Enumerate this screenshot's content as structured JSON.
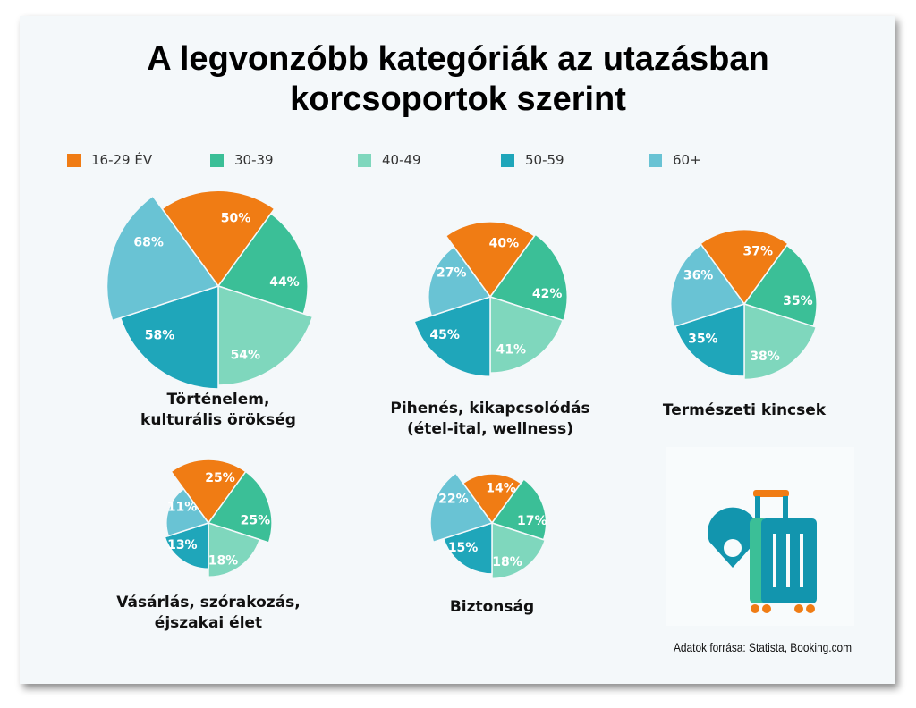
{
  "title_line1": "A legvonzóbb kategóriák az utazásban",
  "title_line2": "korcsoportok szerint",
  "colors": {
    "16-29 ÉV": "#f07c14",
    "30-39": "#3bbf97",
    "40-49": "#7fd7bd",
    "50-59": "#1fa6ba",
    "60+": "#69c3d4"
  },
  "chart_data": {
    "type": "pie",
    "subtype": "polar-area (equal angles, radius scaled by value)",
    "legend": [
      "16-29 ÉV",
      "30-39",
      "40-49",
      "50-59",
      "60+"
    ],
    "legend_position": "top",
    "charts": [
      {
        "label": "Történelem, kulturális örökség",
        "label_lines": [
          "Történelem,",
          "kulturális örökség"
        ],
        "values": [
          50,
          44,
          54,
          58,
          68
        ]
      },
      {
        "label": "Pihenés, kikapcsolódás (étel-ital, wellness)",
        "label_lines": [
          "Pihenés, kikapcsolódás",
          "(étel-ital, wellness)"
        ],
        "values": [
          40,
          42,
          41,
          45,
          27
        ]
      },
      {
        "label": "Természeti kincsek",
        "label_lines": [
          "Természeti kincsek"
        ],
        "values": [
          37,
          35,
          38,
          35,
          36
        ]
      },
      {
        "label": "Vásárlás, szórakozás, éjszakai élet",
        "label_lines": [
          "Vásárlás, szórakozás,",
          "éjszakai élet"
        ],
        "values": [
          25,
          25,
          18,
          13,
          11
        ]
      },
      {
        "label": "Biztonság",
        "label_lines": [
          "Biztonság"
        ],
        "values": [
          14,
          17,
          18,
          15,
          22
        ]
      }
    ]
  },
  "source": "Adatok forrása: Statista, Booking.com",
  "icon": "luggage-and-location-pin-icon"
}
